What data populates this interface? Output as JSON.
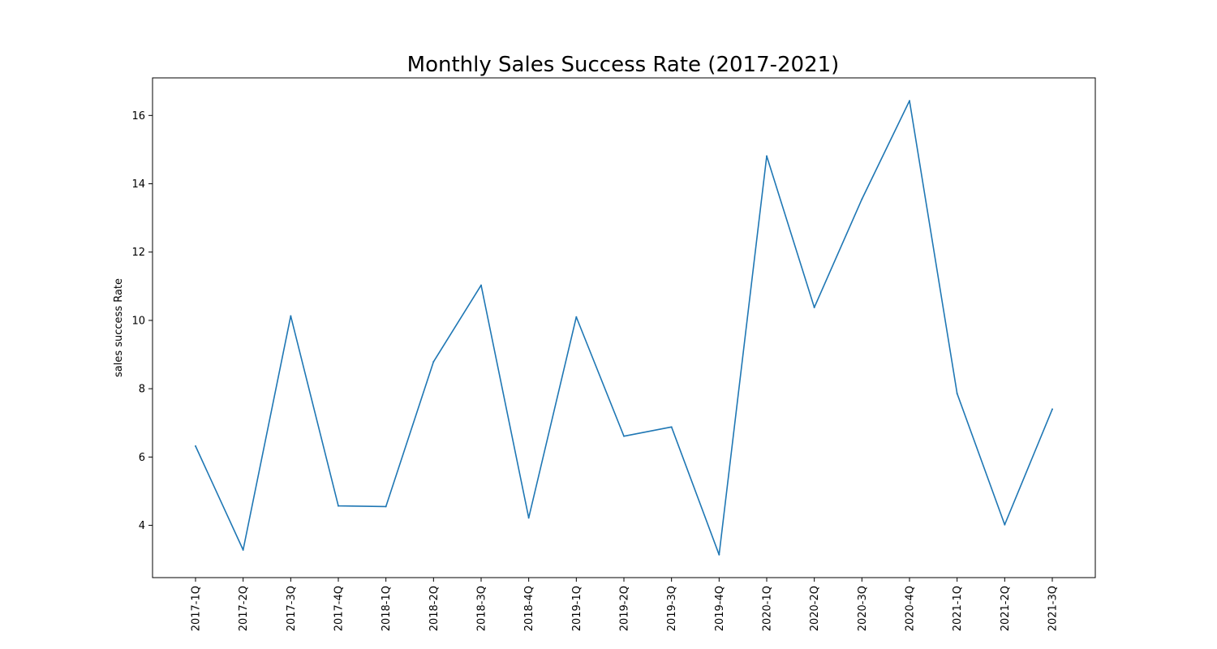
{
  "chart_data": {
    "type": "line",
    "title": "Monthly Sales Success Rate (2017-2021)",
    "xlabel": "",
    "ylabel": "sales success Rate",
    "categories": [
      "2017-1Q",
      "2017-2Q",
      "2017-3Q",
      "2017-4Q",
      "2018-1Q",
      "2018-2Q",
      "2018-3Q",
      "2018-4Q",
      "2019-1Q",
      "2019-2Q",
      "2019-3Q",
      "2019-4Q",
      "2020-1Q",
      "2020-2Q",
      "2020-3Q",
      "2020-4Q",
      "2021-1Q",
      "2021-2Q",
      "2021-3Q"
    ],
    "series": [
      {
        "values": [
          6.32,
          3.28,
          10.13,
          4.57,
          4.55,
          8.79,
          11.03,
          4.22,
          10.1,
          6.61,
          6.88,
          3.14,
          14.81,
          10.38,
          13.55,
          16.43,
          7.86,
          4.02,
          7.4
        ]
      }
    ],
    "yticks": [
      4,
      6,
      8,
      10,
      12,
      14,
      16
    ],
    "ylim": [
      2.47,
      17.1
    ],
    "grid": false,
    "legend": "none",
    "colors": {
      "line": "#1f77b4",
      "axes": "#000000",
      "background": "#ffffff"
    }
  }
}
